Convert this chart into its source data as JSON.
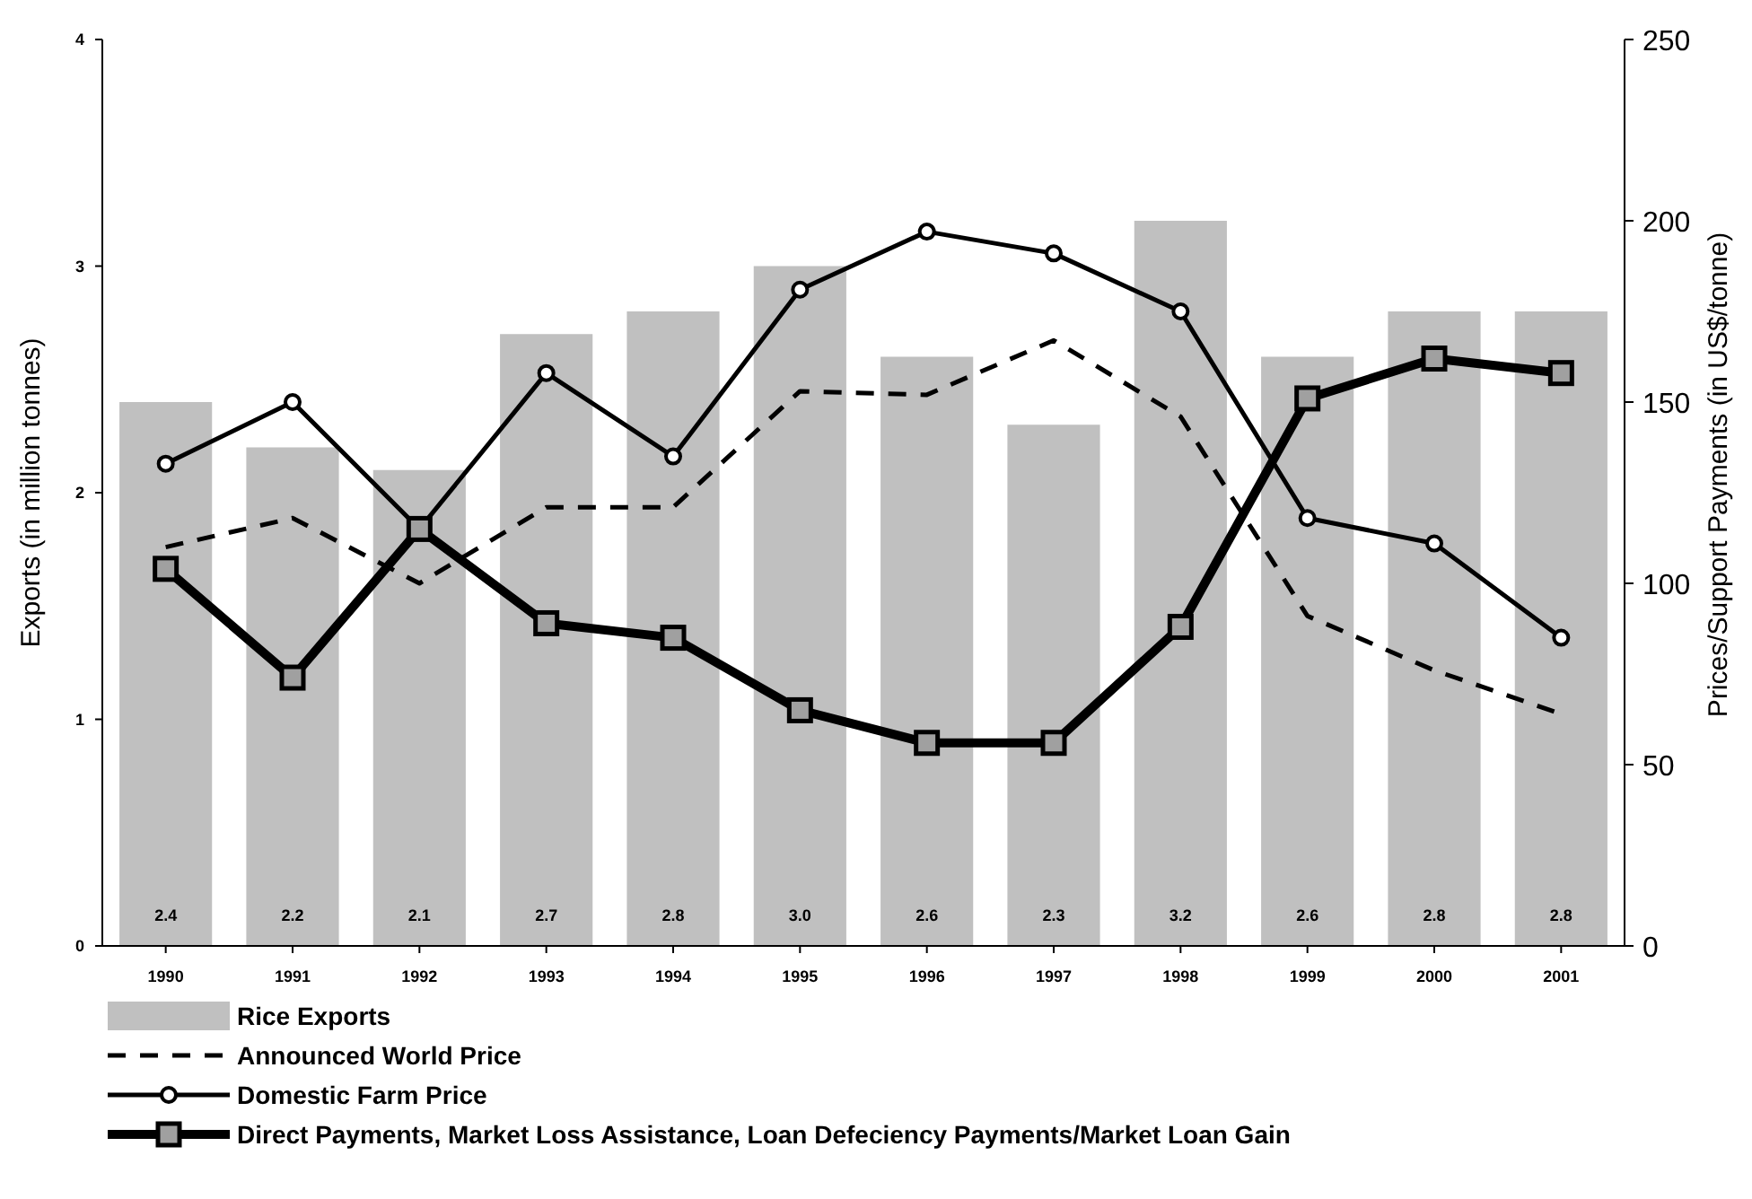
{
  "chart_data": {
    "type": "bar",
    "categories": [
      "1990",
      "1991",
      "1992",
      "1993",
      "1994",
      "1995",
      "1996",
      "1997",
      "1998",
      "1999",
      "2000",
      "2001"
    ],
    "ylabel": "Exports (in million tonnes)",
    "y2label": "Prices/Support Payments (in US$/tonne)",
    "ylim": [
      0,
      4
    ],
    "yticks": [
      0,
      1,
      2,
      3,
      4
    ],
    "y2lim": [
      0,
      250
    ],
    "y2ticks": [
      0,
      50,
      100,
      150,
      200,
      250
    ],
    "legend": "bottom",
    "series": [
      {
        "name": "Rice Exports",
        "color": "#c0c0c0",
        "values": [
          2.4,
          2.2,
          2.1,
          2.7,
          2.8,
          3.0,
          2.6,
          2.3,
          3.2,
          2.6,
          2.8,
          2.8
        ],
        "value_labels": [
          "2.4",
          "2.2",
          "2.1",
          "2.7",
          "2.8",
          "3.0",
          "2.6",
          "2.3",
          "3.2",
          "2.6",
          "2.8",
          "2.8"
        ]
      },
      {
        "name": "Announced World Price",
        "type": "line",
        "axis": "y2",
        "color": "#000000",
        "line_style": "dashed",
        "marker": "none",
        "values": [
          110,
          118,
          100,
          121,
          121,
          153,
          152,
          167,
          146,
          91,
          76,
          64
        ]
      },
      {
        "name": "Domestic Farm Price",
        "type": "line",
        "axis": "y2",
        "color": "#000000",
        "line_style": "solid",
        "marker": "circle",
        "values": [
          133,
          150,
          115,
          158,
          135,
          181,
          197,
          191,
          175,
          118,
          111,
          85
        ]
      },
      {
        "name": "Direct Payments, Market Loss Assistance, Loan Defeciency Payments/Market Loan Gain",
        "type": "line",
        "axis": "y2",
        "color": "#000000",
        "line_style": "solid",
        "marker": "square",
        "values": [
          104,
          74,
          115,
          89,
          85,
          65,
          56,
          56,
          88,
          151,
          162,
          158
        ]
      }
    ]
  }
}
